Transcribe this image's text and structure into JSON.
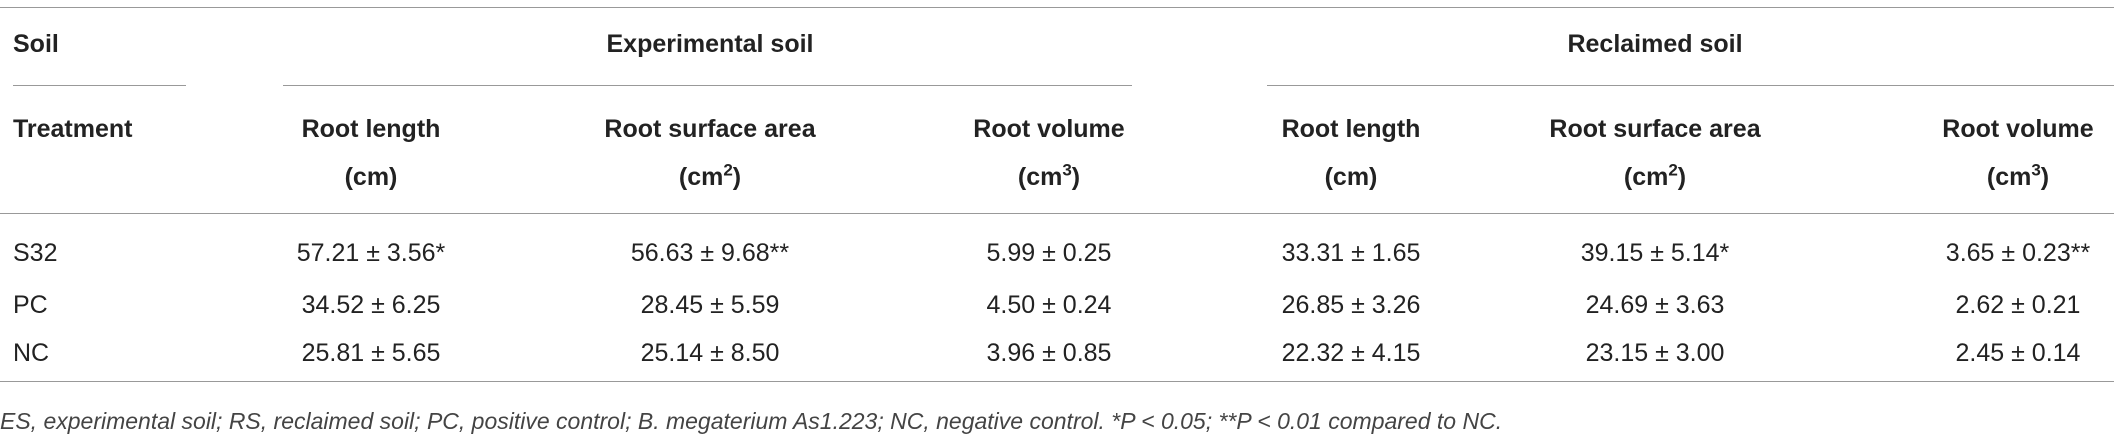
{
  "header": {
    "soil_label": "Soil",
    "groups": [
      "Experimental soil",
      "Reclaimed soil"
    ],
    "treatment_label": "Treatment",
    "columns": [
      {
        "name": "Root length",
        "unit": [
          "(cm)"
        ]
      },
      {
        "name": "Root surface area",
        "unit": [
          "(cm",
          "2",
          ")"
        ]
      },
      {
        "name": "Root volume",
        "unit": [
          "(cm",
          "3",
          ")"
        ]
      },
      {
        "name": "Root length",
        "unit": [
          "(cm)"
        ]
      },
      {
        "name": "Root surface area",
        "unit": [
          "(cm",
          "2",
          ")"
        ]
      },
      {
        "name": "Root volume",
        "unit": [
          "(cm",
          "3",
          ")"
        ]
      }
    ]
  },
  "table": {
    "rows": [
      [
        "S32",
        "57.21 ± 3.56*",
        "56.63 ± 9.68**",
        "5.99 ± 0.25",
        "33.31 ± 1.65",
        "39.15 ± 5.14*",
        "3.65 ± 0.23**"
      ],
      [
        "PC",
        "34.52 ± 6.25",
        "28.45 ± 5.59",
        "4.50 ± 0.24",
        "26.85 ± 3.26",
        "24.69 ± 3.63",
        "2.62 ± 0.21"
      ],
      [
        "NC",
        "25.81 ± 5.65",
        "25.14 ± 8.50",
        "3.96 ± 0.85",
        "22.32 ± 4.15",
        "23.15 ± 3.00",
        "2.45 ± 0.14"
      ]
    ]
  },
  "footnote": "ES, experimental soil; RS, reclaimed soil; PC, positive control; B. megaterium As1.223; NC, negative control. *P < 0.05; **P < 0.01 compared to NC."
}
